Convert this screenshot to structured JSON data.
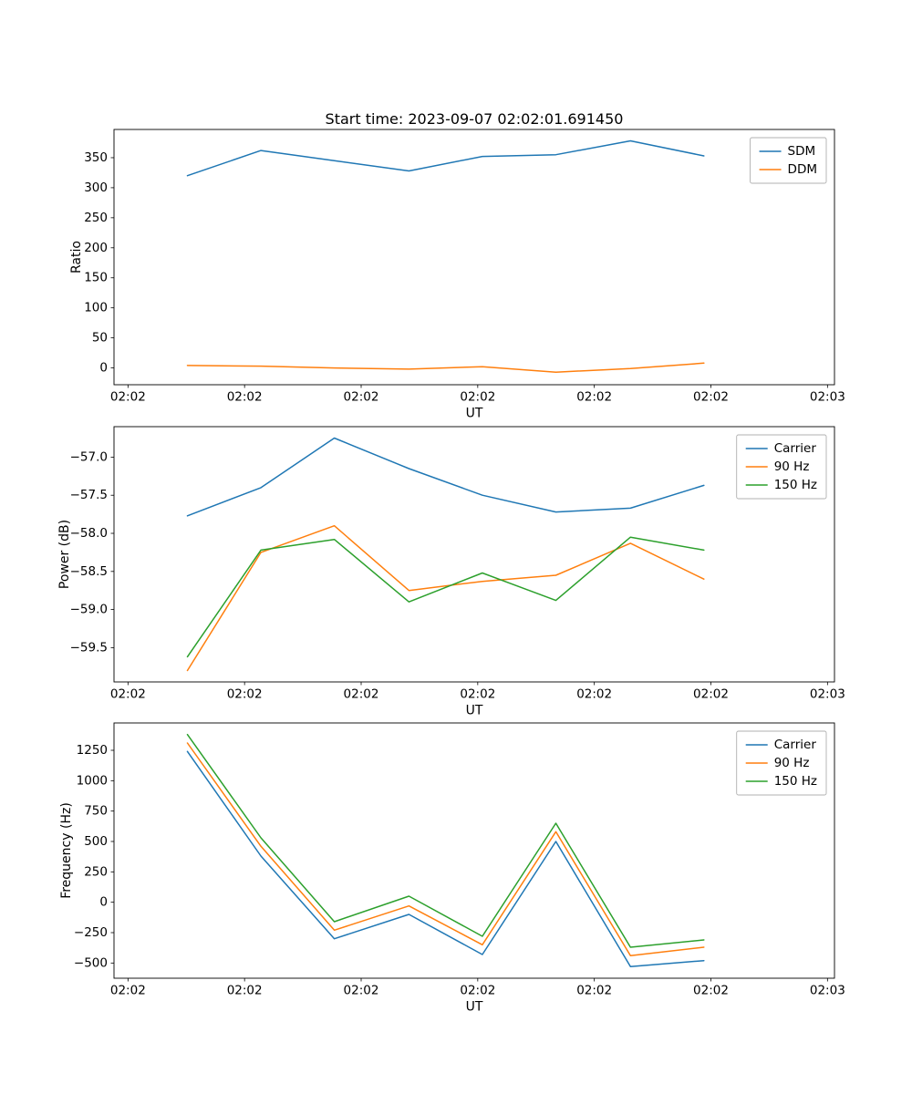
{
  "figure_title": "Start time: 2023-09-07 02:02:01.691450",
  "chart_data": [
    {
      "type": "line",
      "title": "Start time: 2023-09-07 02:02:01.691450",
      "xlabel": "UT",
      "ylabel": "Ratio",
      "xlim": [
        -1.2,
        60.6
      ],
      "ylim": [
        -28,
        397
      ],
      "grid": false,
      "x_ticks": {
        "positions": [
          0,
          10,
          20,
          30,
          40,
          50,
          60
        ],
        "labels": [
          "02:02",
          "02:02",
          "02:02",
          "02:02",
          "02:02",
          "02:02",
          "02:03"
        ]
      },
      "y_ticks": {
        "positions": [
          0,
          50,
          100,
          150,
          200,
          250,
          300,
          350
        ],
        "labels": [
          "0",
          "50",
          "100",
          "150",
          "200",
          "250",
          "300",
          "350"
        ]
      },
      "x": [
        5.1,
        11.4,
        17.7,
        24.1,
        30.4,
        36.7,
        43.1,
        49.4
      ],
      "series": [
        {
          "name": "SDM",
          "color": "#1f77b4",
          "values": [
            320,
            362,
            345,
            328,
            352,
            355,
            378,
            353
          ]
        },
        {
          "name": "DDM",
          "color": "#ff7f0e",
          "values": [
            4,
            3,
            0,
            -2,
            2,
            -7,
            -1,
            8
          ]
        }
      ],
      "legend": {
        "position": "upper right",
        "entries": [
          "SDM",
          "DDM"
        ]
      }
    },
    {
      "type": "line",
      "title": "",
      "xlabel": "UT",
      "ylabel": "Power (dB)",
      "xlim": [
        -1.2,
        60.6
      ],
      "ylim": [
        -59.95,
        -56.6
      ],
      "grid": false,
      "x_ticks": {
        "positions": [
          0,
          10,
          20,
          30,
          40,
          50,
          60
        ],
        "labels": [
          "02:02",
          "02:02",
          "02:02",
          "02:02",
          "02:02",
          "02:02",
          "02:03"
        ]
      },
      "y_ticks": {
        "positions": [
          -59.5,
          -59.0,
          -58.5,
          -58.0,
          -57.5,
          -57.0
        ],
        "labels": [
          "−59.5",
          "−59.0",
          "−58.5",
          "−58.0",
          "−57.5",
          "−57.0"
        ]
      },
      "x": [
        5.1,
        11.4,
        17.7,
        24.1,
        30.4,
        36.7,
        43.1,
        49.4
      ],
      "series": [
        {
          "name": "Carrier",
          "color": "#1f77b4",
          "values": [
            -57.77,
            -57.4,
            -56.75,
            -57.15,
            -57.5,
            -57.72,
            -57.67,
            -57.37
          ]
        },
        {
          "name": "90 Hz",
          "color": "#ff7f0e",
          "values": [
            -59.8,
            -58.25,
            -57.9,
            -58.75,
            -58.63,
            -58.55,
            -58.13,
            -58.6
          ]
        },
        {
          "name": "150 Hz",
          "color": "#2ca02c",
          "values": [
            -59.62,
            -58.22,
            -58.08,
            -58.9,
            -58.52,
            -58.88,
            -58.05,
            -58.22
          ]
        }
      ],
      "legend": {
        "position": "upper right",
        "entries": [
          "Carrier",
          "90 Hz",
          "150 Hz"
        ]
      }
    },
    {
      "type": "line",
      "title": "",
      "xlabel": "UT",
      "ylabel": "Frequency (Hz)",
      "xlim": [
        -1.2,
        60.6
      ],
      "ylim": [
        -625,
        1475
      ],
      "grid": false,
      "x_ticks": {
        "positions": [
          0,
          10,
          20,
          30,
          40,
          50,
          60
        ],
        "labels": [
          "02:02",
          "02:02",
          "02:02",
          "02:02",
          "02:02",
          "02:02",
          "02:03"
        ]
      },
      "y_ticks": {
        "positions": [
          -500,
          -250,
          0,
          250,
          500,
          750,
          1000,
          1250
        ],
        "labels": [
          "−500",
          "−250",
          "0",
          "250",
          "500",
          "750",
          "1000",
          "1250"
        ]
      },
      "x": [
        5.1,
        11.4,
        17.7,
        24.1,
        30.4,
        36.7,
        43.1,
        49.4
      ],
      "series": [
        {
          "name": "Carrier",
          "color": "#1f77b4",
          "values": [
            1240,
            380,
            -300,
            -100,
            -430,
            500,
            -530,
            -480
          ]
        },
        {
          "name": "90 Hz",
          "color": "#ff7f0e",
          "values": [
            1310,
            460,
            -230,
            -30,
            -350,
            580,
            -440,
            -370
          ]
        },
        {
          "name": "150 Hz",
          "color": "#2ca02c",
          "values": [
            1380,
            530,
            -160,
            50,
            -280,
            650,
            -370,
            -310
          ]
        }
      ],
      "legend": {
        "position": "upper right",
        "entries": [
          "Carrier",
          "90 Hz",
          "150 Hz"
        ]
      }
    }
  ]
}
